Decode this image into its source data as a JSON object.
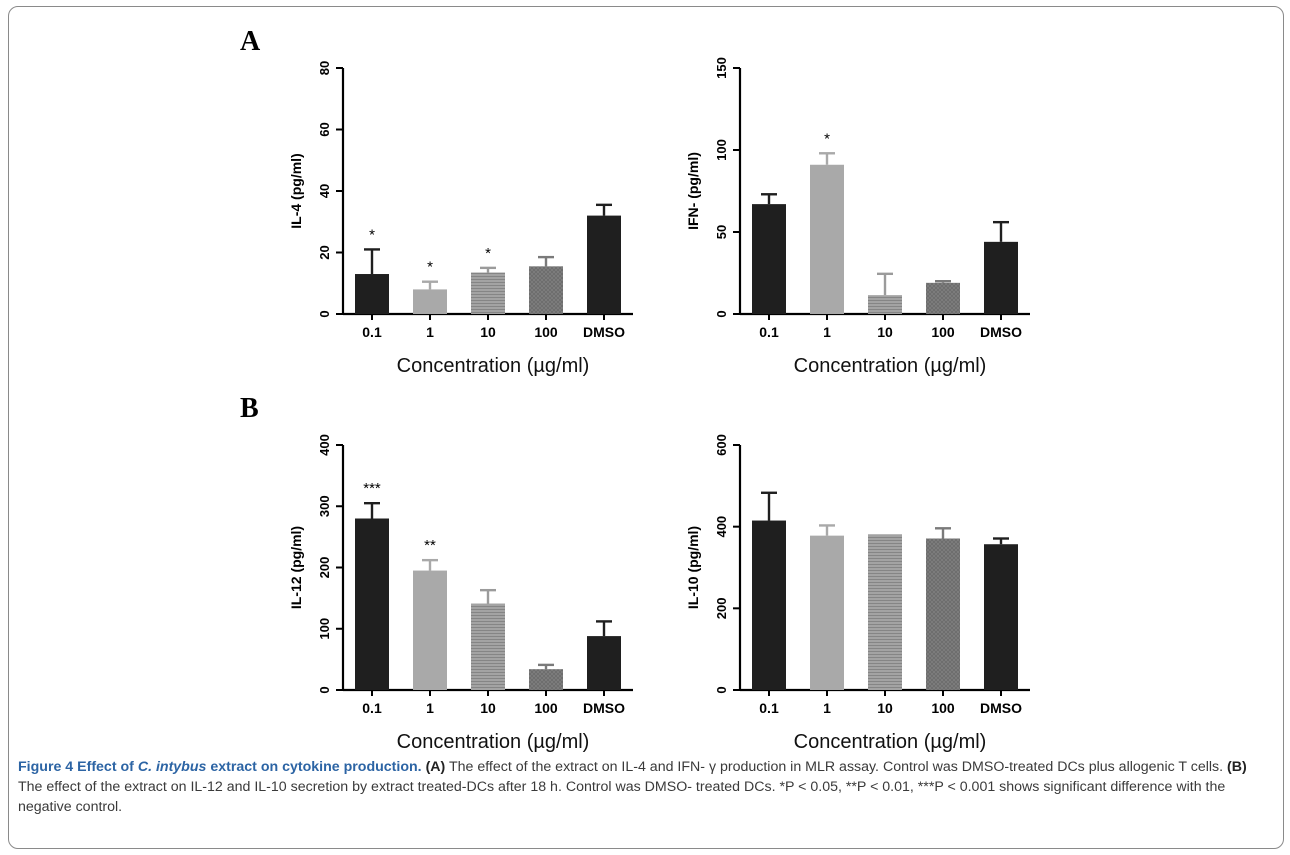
{
  "panels": {
    "A": "A",
    "B": "B"
  },
  "caption": {
    "title_prefix": "Figure 4 Effect of ",
    "title_species": "C. intybus",
    "title_suffix": " extract on cytokine production.",
    "label_a": "(A)",
    "text_a": " The effect of the extract on IL-4 and IFN- γ production in MLR assay. Control was DMSO-treated DCs plus allogenic T cells. ",
    "label_b": "(B)",
    "text_b": " The effect of the extract on IL-12 and IL-10 secretion by extract treated-DCs after 18 h. Control was DMSO- treated DCs. *P < 0.05, **P < 0.01, ***P < 0.001 shows significant difference with the negative control."
  },
  "chart_data": [
    {
      "type": "bar",
      "panel": "A",
      "categories": [
        "0.1",
        "1",
        "10",
        "100",
        "DMSO"
      ],
      "values": [
        13,
        8,
        13.5,
        15.5,
        32
      ],
      "errors": [
        8,
        2.5,
        1.5,
        3,
        3.5
      ],
      "significance": [
        "*",
        "*",
        "*",
        "",
        ""
      ],
      "xlabel": "Concentration (µg/ml)",
      "ylabel": "IL-4 (pg/ml)",
      "ylim": [
        0,
        80
      ],
      "yticks": [
        "0",
        "20",
        "40",
        "60",
        "80"
      ],
      "colors": [
        "#1f1f1f",
        "#a9a9a9",
        "#9b9b9b",
        "#7a7a7a",
        "#1f1f1f"
      ],
      "patterns": [
        "solid",
        "solid",
        "hlines",
        "crosshatch",
        "solid"
      ]
    },
    {
      "type": "bar",
      "panel": "A",
      "categories": [
        "0.1",
        "1",
        "10",
        "100",
        "DMSO"
      ],
      "values": [
        67,
        91,
        11.5,
        19,
        44
      ],
      "errors": [
        6,
        7,
        13,
        1,
        12
      ],
      "significance": [
        "",
        "*",
        "",
        "",
        ""
      ],
      "xlabel": "Concentration (µg/ml)",
      "ylabel": "IFN- (pg/ml)",
      "ylim": [
        0,
        150
      ],
      "yticks": [
        "0",
        "50",
        "100",
        "150"
      ],
      "colors": [
        "#1f1f1f",
        "#a9a9a9",
        "#9b9b9b",
        "#7a7a7a",
        "#1f1f1f"
      ],
      "patterns": [
        "solid",
        "solid",
        "hlines",
        "crosshatch",
        "solid"
      ]
    },
    {
      "type": "bar",
      "panel": "B",
      "categories": [
        "0.1",
        "1",
        "10",
        "100",
        "DMSO"
      ],
      "values": [
        280,
        195,
        141,
        34,
        88
      ],
      "errors": [
        25,
        17,
        22,
        7,
        24
      ],
      "significance": [
        "***",
        "**",
        "",
        "",
        ""
      ],
      "xlabel": "Concentration (µg/ml)",
      "ylabel": "IL-12 (pg/ml)",
      "ylim": [
        0,
        400
      ],
      "yticks": [
        "0",
        "100",
        "200",
        "300",
        "400"
      ],
      "colors": [
        "#1f1f1f",
        "#a9a9a9",
        "#9b9b9b",
        "#7a7a7a",
        "#1f1f1f"
      ],
      "patterns": [
        "solid",
        "solid",
        "hlines",
        "crosshatch",
        "solid"
      ]
    },
    {
      "type": "bar",
      "panel": "B",
      "categories": [
        "0.1",
        "1",
        "10",
        "100",
        "DMSO"
      ],
      "values": [
        415,
        378,
        381,
        371,
        357
      ],
      "errors": [
        68,
        25,
        0,
        25,
        14
      ],
      "significance": [
        "",
        "",
        "",
        "",
        ""
      ],
      "xlabel": "Concentration (µg/ml)",
      "ylabel": "IL-10 (pg/ml)",
      "ylim": [
        0,
        600
      ],
      "yticks": [
        "0",
        "200",
        "400",
        "600"
      ],
      "colors": [
        "#1f1f1f",
        "#a9a9a9",
        "#9b9b9b",
        "#7a7a7a",
        "#1f1f1f"
      ],
      "patterns": [
        "solid",
        "solid",
        "hlines",
        "crosshatch",
        "solid"
      ]
    }
  ]
}
